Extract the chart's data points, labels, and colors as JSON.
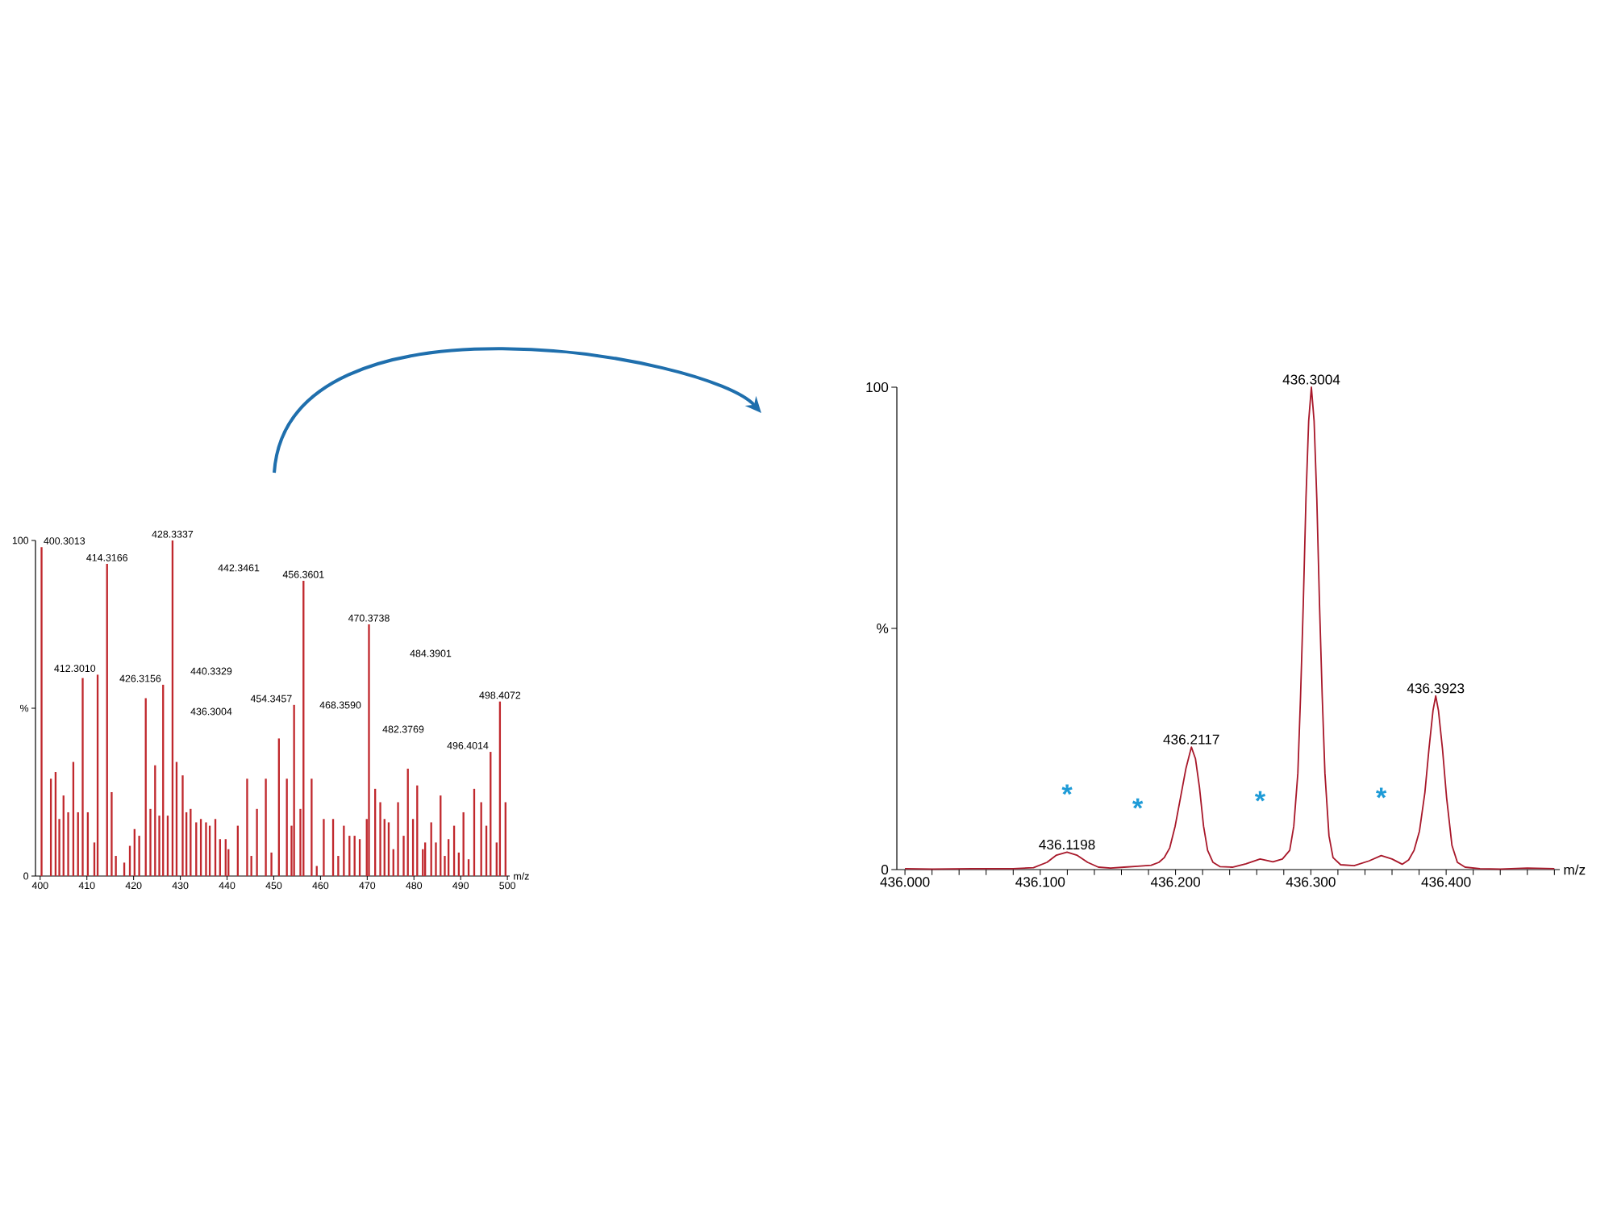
{
  "chart_data": [
    {
      "type": "bar",
      "xlabel": "m/z",
      "x": [
        400.3013,
        402.3,
        403.3,
        404.1,
        405.0,
        406.0,
        407.1,
        408.1,
        409.1,
        410.2,
        411.6,
        412.301,
        414.3166,
        415.3,
        416.2,
        418.0,
        419.2,
        420.2,
        421.2,
        422.6,
        423.6,
        424.6,
        425.5,
        426.3156,
        427.3,
        428.3337,
        429.2,
        430.5,
        431.3,
        432.2,
        433.4,
        434.4,
        435.5,
        436.3,
        437.5,
        438.5,
        439.7,
        440.3,
        442.3,
        444.3,
        445.2,
        446.4,
        448.3,
        449.5,
        451.1,
        452.8,
        453.8,
        454.3457,
        455.7,
        456.3601,
        458.1,
        459.2,
        460.7,
        462.7,
        463.8,
        465.0,
        466.2,
        467.3,
        468.4,
        469.9,
        470.3738,
        471.7,
        472.8,
        473.7,
        474.6,
        475.6,
        476.6,
        477.8,
        478.7,
        479.8,
        480.7,
        481.9,
        482.4,
        483.7,
        484.7,
        485.7,
        486.6,
        487.4,
        488.6,
        489.6,
        490.6,
        491.7,
        492.9,
        494.4,
        495.5,
        496.4014,
        497.7,
        498.4072,
        499.6
      ],
      "values": [
        98,
        29,
        31,
        17,
        24,
        19,
        34,
        19,
        59,
        19,
        10,
        60,
        93,
        25,
        6,
        4,
        9,
        14,
        12,
        53,
        20,
        33,
        18,
        57,
        18,
        100,
        34,
        30,
        19,
        20,
        16,
        17,
        16,
        15,
        17,
        11,
        11,
        8,
        15,
        29,
        6,
        20,
        29,
        7,
        41,
        29,
        15,
        51,
        20,
        88,
        29,
        3,
        17,
        17,
        6,
        15,
        12,
        12,
        11,
        17,
        75,
        26,
        22,
        17,
        16,
        8,
        22,
        12,
        32,
        17,
        27,
        8,
        10,
        16,
        10,
        24,
        6,
        11,
        15,
        7,
        19,
        5,
        26,
        22,
        15,
        37,
        10,
        52,
        22
      ],
      "color": "#c0282d",
      "xlim": [
        399,
        500.5
      ],
      "ylim": [
        0,
        100
      ],
      "xticks": [
        400,
        410,
        420,
        430,
        440,
        450,
        460,
        470,
        480,
        490,
        500
      ],
      "yticks": [
        0,
        {
          "value": 50,
          "label": "%"
        },
        100
      ],
      "annotations": [
        {
          "text": "400.3013",
          "x": 400.3013,
          "y": 98
        },
        {
          "text": "414.3166",
          "x": 414.3166,
          "y": 93
        },
        {
          "text": "428.3337",
          "x": 428.3337,
          "y": 100
        },
        {
          "text": "412.3010",
          "x": 412.301,
          "y": 60
        },
        {
          "text": "426.3156",
          "x": 426.3156,
          "y": 57
        },
        {
          "text": "454.3457",
          "x": 454.3457,
          "y": 51
        },
        {
          "text": "456.3601",
          "x": 456.3601,
          "y": 88
        },
        {
          "text": "470.3738",
          "x": 470.3738,
          "y": 75
        },
        {
          "text": "496.4014",
          "x": 496.4014,
          "y": 37
        },
        {
          "text": "498.4072",
          "x": 498.4072,
          "y": 52
        },
        "442.3461",
        "440.3329",
        "436.3004",
        "468.3590",
        "484.3901",
        "482.3769"
      ]
    },
    {
      "type": "line",
      "xlabel": "m/z",
      "x": [
        436.0,
        436.02,
        436.05,
        436.08,
        436.095,
        436.105,
        436.112,
        436.1198,
        436.127,
        436.135,
        436.143,
        436.152,
        436.162,
        436.172,
        436.182,
        436.1877,
        436.1917,
        436.1957,
        436.1997,
        436.2037,
        436.2077,
        436.2117,
        436.2147,
        436.2177,
        436.2207,
        436.2237,
        436.2277,
        436.233,
        436.242,
        436.252,
        436.2625,
        436.272,
        436.279,
        436.2844,
        436.2874,
        436.2904,
        436.2924,
        436.2944,
        436.2964,
        436.2984,
        436.3004,
        436.3024,
        436.3044,
        436.3064,
        436.3084,
        436.3104,
        436.3134,
        436.3164,
        436.322,
        436.332,
        436.343,
        436.352,
        436.36,
        436.3675,
        436.3723,
        436.3763,
        436.3803,
        436.3843,
        436.3873,
        436.3903,
        436.3923,
        436.3943,
        436.3973,
        436.4003,
        436.4043,
        436.4083,
        436.414,
        436.425,
        436.44,
        436.46,
        436.48
      ],
      "values": [
        0.2,
        0.1,
        0.2,
        0.2,
        0.4,
        1.5,
        3.0,
        3.6,
        3.0,
        1.5,
        0.5,
        0.3,
        0.5,
        0.7,
        0.9,
        1.5,
        2.5,
        4.5,
        9,
        15,
        21,
        25.4,
        23,
        17,
        9,
        4,
        1.5,
        0.6,
        0.5,
        1.2,
        2.2,
        1.6,
        2.2,
        4,
        9,
        20,
        36,
        55,
        77,
        93,
        100,
        93,
        77,
        55,
        36,
        20,
        7,
        2.5,
        1.0,
        0.8,
        1.8,
        2.9,
        2.2,
        1.1,
        2.0,
        4,
        8,
        16,
        25,
        33,
        36,
        33,
        25,
        15,
        5,
        1.5,
        0.5,
        0.2,
        0.1,
        0.3,
        0.2
      ],
      "color": "#a8182a",
      "xlim": [
        435.994,
        436.484
      ],
      "ylim": [
        0,
        100
      ],
      "xticks": [
        {
          "value": 436.0,
          "label": "436.000"
        },
        {
          "value": 436.02,
          "label": null
        },
        {
          "value": 436.04,
          "label": null
        },
        {
          "value": 436.06,
          "label": null
        },
        {
          "value": 436.08,
          "label": null
        },
        {
          "value": 436.1,
          "label": "436.100"
        },
        {
          "value": 436.12,
          "label": null
        },
        {
          "value": 436.14,
          "label": null
        },
        {
          "value": 436.16,
          "label": null
        },
        {
          "value": 436.18,
          "label": null
        },
        {
          "value": 436.2,
          "label": "436.200"
        },
        {
          "value": 436.22,
          "label": null
        },
        {
          "value": 436.24,
          "label": null
        },
        {
          "value": 436.26,
          "label": null
        },
        {
          "value": 436.28,
          "label": null
        },
        {
          "value": 436.3,
          "label": "436.300"
        },
        {
          "value": 436.32,
          "label": null
        },
        {
          "value": 436.34,
          "label": null
        },
        {
          "value": 436.36,
          "label": null
        },
        {
          "value": 436.38,
          "label": null
        },
        {
          "value": 436.4,
          "label": "436.400"
        },
        {
          "value": 436.42,
          "label": null
        },
        {
          "value": 436.44,
          "label": null
        },
        {
          "value": 436.46,
          "label": null
        },
        {
          "value": 436.48,
          "label": null
        }
      ],
      "yticks": [
        0,
        {
          "value": 50,
          "label": "%"
        },
        100
      ],
      "annotations": [
        {
          "text": "436.1198",
          "x": 436.1198,
          "y": 3.6
        },
        {
          "text": "436.2117",
          "x": 436.2117,
          "y": 25.4
        },
        {
          "text": "436.3004",
          "x": 436.3004,
          "y": 100
        },
        {
          "text": "436.3923",
          "x": 436.3923,
          "y": 36
        },
        {
          "text": "*",
          "x": 436.1198,
          "y": 3.6
        },
        {
          "text": "*",
          "x": 436.172,
          "y": 0.7
        },
        {
          "text": "*",
          "x": 436.2625,
          "y": 2.2
        },
        {
          "text": "*",
          "x": 436.352,
          "y": 2.9
        }
      ]
    }
  ]
}
